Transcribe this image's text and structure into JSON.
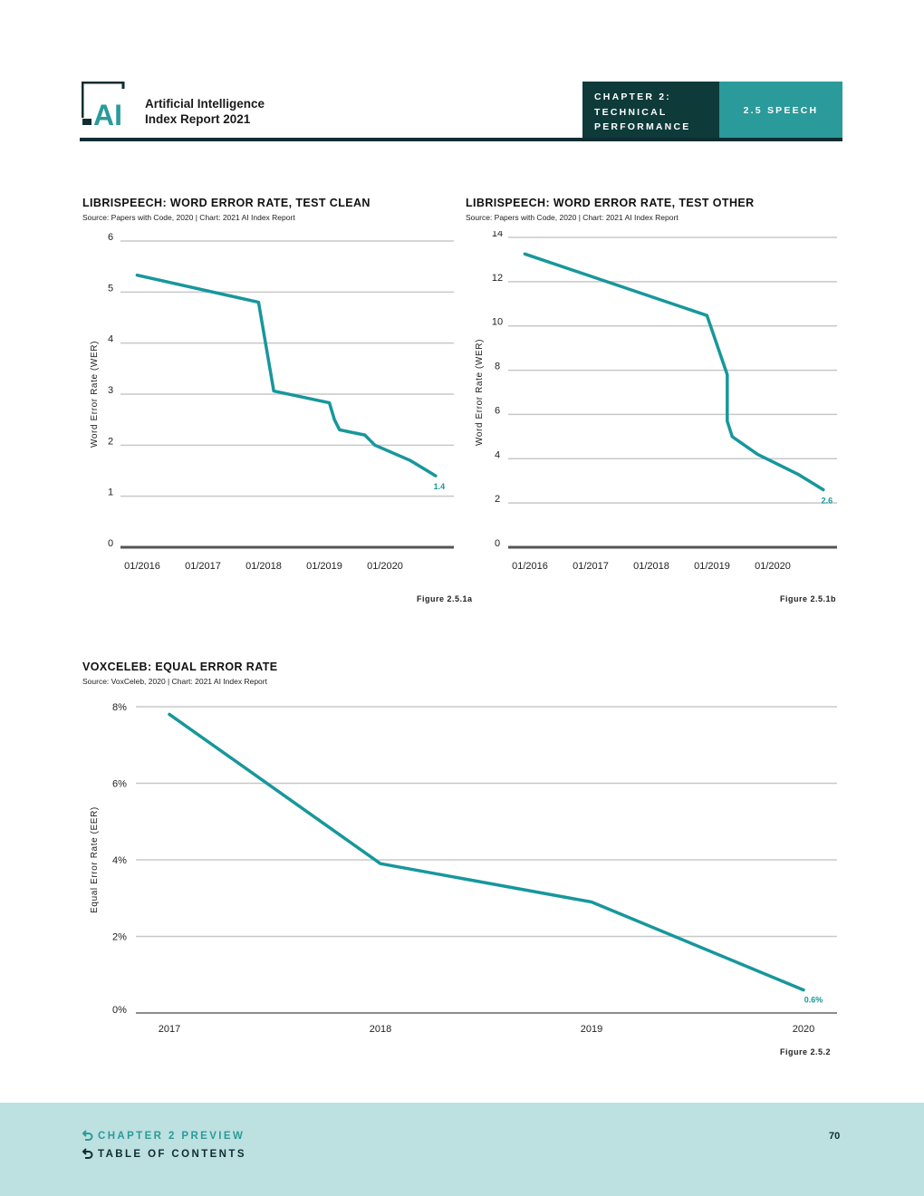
{
  "header": {
    "logo_text": "AI",
    "report_title_line1": "Artificial Intelligence",
    "report_title_line2": "Index Report 2021",
    "chapter_line1": "CHAPTER 2:",
    "chapter_line2": "TECHNICAL",
    "chapter_line3": "PERFORMANCE",
    "section": "2.5 SPEECH"
  },
  "colors": {
    "accent": "#2b9a9a",
    "dark": "#0f2d33",
    "footer_bg": "#bde0e0",
    "line": "#17979b"
  },
  "charts": [
    {
      "title": "LIBRISPEECH: WORD ERROR RATE, TEST CLEAN",
      "source": "Source: Papers with Code, 2020 | Chart: 2021 AI Index Report",
      "figure": "Figure 2.5.1a"
    },
    {
      "title": "LIBRISPEECH: WORD ERROR RATE, TEST OTHER",
      "source": "Source: Papers with Code, 2020 | Chart: 2021 AI Index Report",
      "figure": "Figure 2.5.1b"
    },
    {
      "title": "VOXCELEB: EQUAL ERROR RATE",
      "source": "Source: VoxCeleb, 2020 | Chart: 2021 AI Index Report",
      "figure": "Figure 2.5.2"
    }
  ],
  "chart_data": [
    {
      "type": "line",
      "title": "LIBRISPEECH: WORD ERROR RATE, TEST CLEAN",
      "ylabel": "Word Error Rate (WER)",
      "ylim": [
        0,
        6
      ],
      "yticks": [
        "0",
        "1",
        "2",
        "3",
        "4",
        "5",
        "6"
      ],
      "xticks": [
        "01/2016",
        "01/2017",
        "01/2018",
        "01/2019",
        "01/2020"
      ],
      "grid": true,
      "x": [
        "2015-12",
        "2017-12",
        "2018-03",
        "2019-02",
        "2019-03",
        "2019-04",
        "2019-09",
        "2019-11",
        "2020-06",
        "2020-11"
      ],
      "y": [
        5.33,
        4.8,
        3.06,
        2.83,
        2.5,
        2.3,
        2.2,
        2.0,
        1.7,
        1.4
      ],
      "end_label": "1.4"
    },
    {
      "type": "line",
      "title": "LIBRISPEECH: WORD ERROR RATE, TEST OTHER",
      "ylabel": "Word Error Rate (WER)",
      "ylim": [
        0,
        14
      ],
      "yticks": [
        "0",
        "2",
        "4",
        "6",
        "8",
        "10",
        "12",
        "14"
      ],
      "xticks": [
        "01/2016",
        "01/2017",
        "01/2018",
        "01/2019",
        "01/2020"
      ],
      "grid": true,
      "x": [
        "2015-12",
        "2018-12",
        "2019-04",
        "2019-04",
        "2019-05",
        "2019-10",
        "2020-06",
        "2020-11"
      ],
      "y": [
        13.25,
        10.47,
        7.8,
        5.7,
        5.0,
        4.2,
        3.3,
        2.6
      ],
      "end_label": "2.6"
    },
    {
      "type": "line",
      "title": "VOXCELEB: EQUAL ERROR RATE",
      "ylabel": "Equal Error Rate (EER)",
      "ylim": [
        0,
        8
      ],
      "yticks": [
        "0%",
        "2%",
        "4%",
        "6%",
        "8%"
      ],
      "categories": [
        "2017",
        "2018",
        "2019",
        "2020"
      ],
      "values": [
        7.8,
        3.9,
        2.9,
        0.6
      ],
      "grid": true,
      "end_label": "0.6%"
    }
  ],
  "footer": {
    "preview_link": "CHAPTER 2 PREVIEW",
    "toc_link": "TABLE OF CONTENTS",
    "page_number": "70"
  }
}
